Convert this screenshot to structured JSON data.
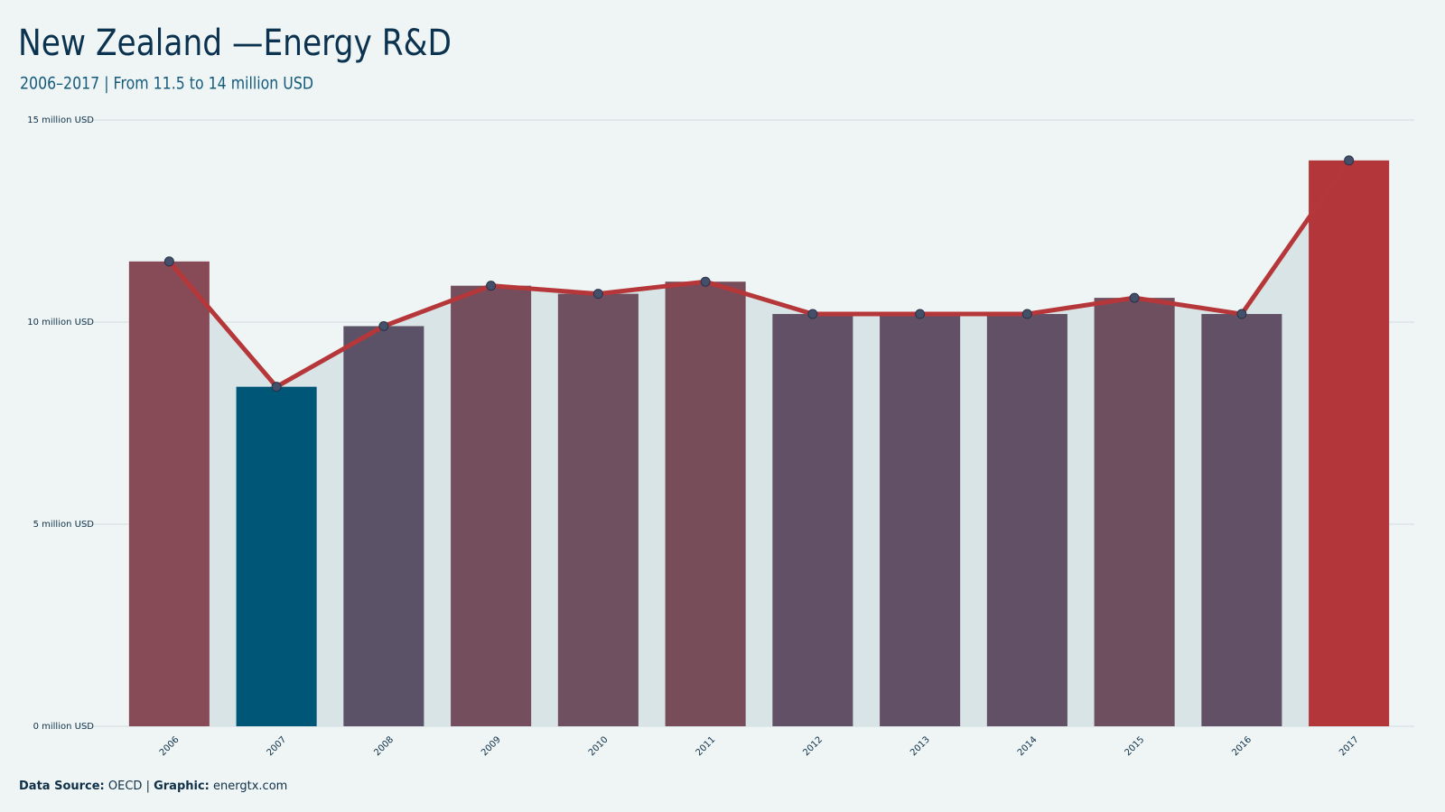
{
  "chart_data": {
    "type": "bar-line",
    "title": "New Zealand —Energy R&D",
    "subtitle": "2006–2017 | From 11.5 to 14 million USD",
    "categories": [
      "2006",
      "2007",
      "2008",
      "2009",
      "2010",
      "2011",
      "2012",
      "2013",
      "2014",
      "2015",
      "2016",
      "2017"
    ],
    "values": [
      11.5,
      8.4,
      9.9,
      10.9,
      10.7,
      11.0,
      10.2,
      10.2,
      10.2,
      10.6,
      10.2,
      14.0
    ],
    "colors": [
      "#874b57",
      "#005677",
      "#5b5268",
      "#744e5c",
      "#6e5060",
      "#774d5a",
      "#625166",
      "#625166",
      "#625166",
      "#6e4f60",
      "#625166",
      "#b3373a"
    ],
    "line_color": "#b5373a",
    "area_color": "#d9e4e7",
    "point_color": "#43506a",
    "ylim": [
      0,
      15
    ],
    "yticks": [
      {
        "value": 0,
        "label": "0 million USD"
      },
      {
        "value": 5,
        "label": "5 million USD"
      },
      {
        "value": 10,
        "label": "10 million USD"
      },
      {
        "value": 15,
        "label": "15 million USD"
      }
    ],
    "grid": true,
    "source_label": "Data Source:",
    "source": "OECD |",
    "graphic_label": "Graphic:",
    "graphic": "energtx.com"
  }
}
